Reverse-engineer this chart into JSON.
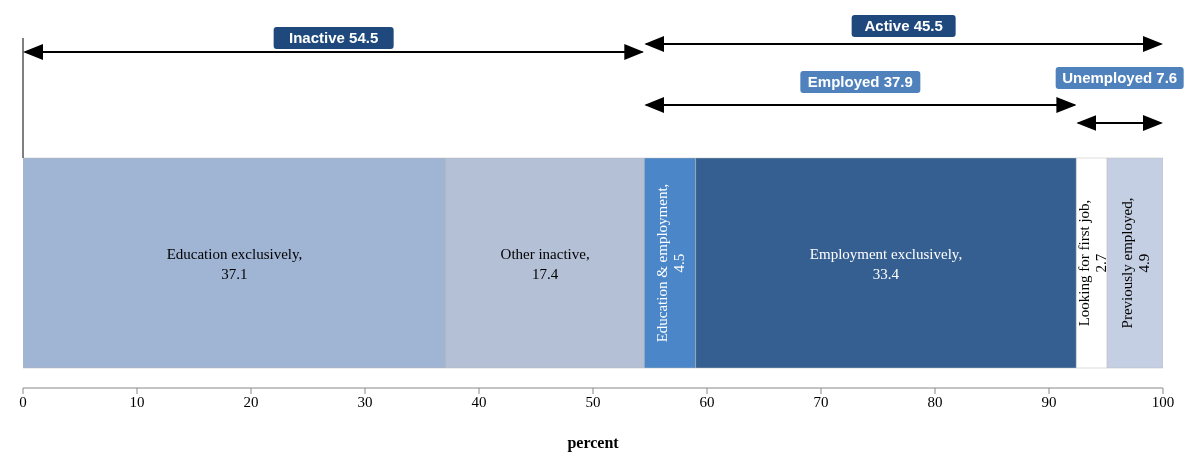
{
  "chart_data": {
    "type": "bar",
    "orientation": "horizontal",
    "stacked": true,
    "categories": [
      null
    ],
    "series": [
      {
        "name": "Education exclusively,",
        "color": "#a0b4d4",
        "values": [
          37.1
        ]
      },
      {
        "name": "Other inactive,",
        "color": "#b4c0d6",
        "values": [
          17.4
        ]
      },
      {
        "name": "Education & employment,",
        "color": "#4a86c8",
        "values": [
          4.5
        ]
      },
      {
        "name": "Employment exclusively,",
        "color": "#365f91",
        "values": [
          33.4
        ]
      },
      {
        "name": "Looking for first job,",
        "color": "#ffffff",
        "values": [
          2.7
        ]
      },
      {
        "name": "Previously employed,",
        "color": "#c5cfe3",
        "values": [
          4.9
        ]
      }
    ],
    "data_labels": true,
    "xlim": [
      0,
      100
    ],
    "xticks": [
      0,
      10,
      20,
      30,
      40,
      50,
      60,
      70,
      80,
      90,
      100
    ],
    "xlabel": "percent",
    "annotations": [
      "Inactive 54.5",
      "Active 45.5",
      "Employed 37.9",
      "Unemployed 7.6"
    ]
  }
}
